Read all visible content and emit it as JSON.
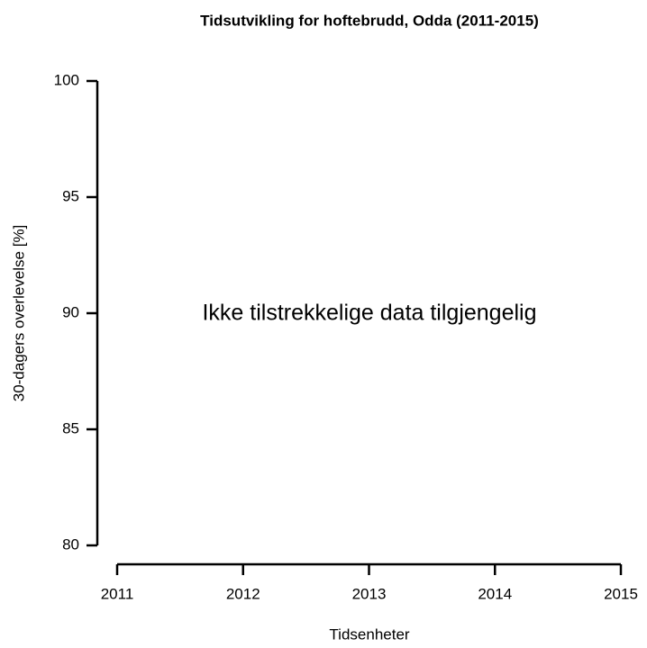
{
  "chart_data": {
    "type": "line",
    "title": "Tidsutvikling for hoftebrudd, Odda (2011-2015)",
    "x_label": "Tidsenheter",
    "y_label": "30-dagers overlevelse [%]",
    "annotation": "Ikke tilstrekkelige data tilgjengelig",
    "xlim": [
      2011,
      2015
    ],
    "xticks": [
      2011,
      2012,
      2013,
      2014,
      2015
    ],
    "ylim": [
      80,
      100
    ],
    "yticks": [
      80,
      85,
      90,
      95,
      100
    ],
    "grid": false
  }
}
